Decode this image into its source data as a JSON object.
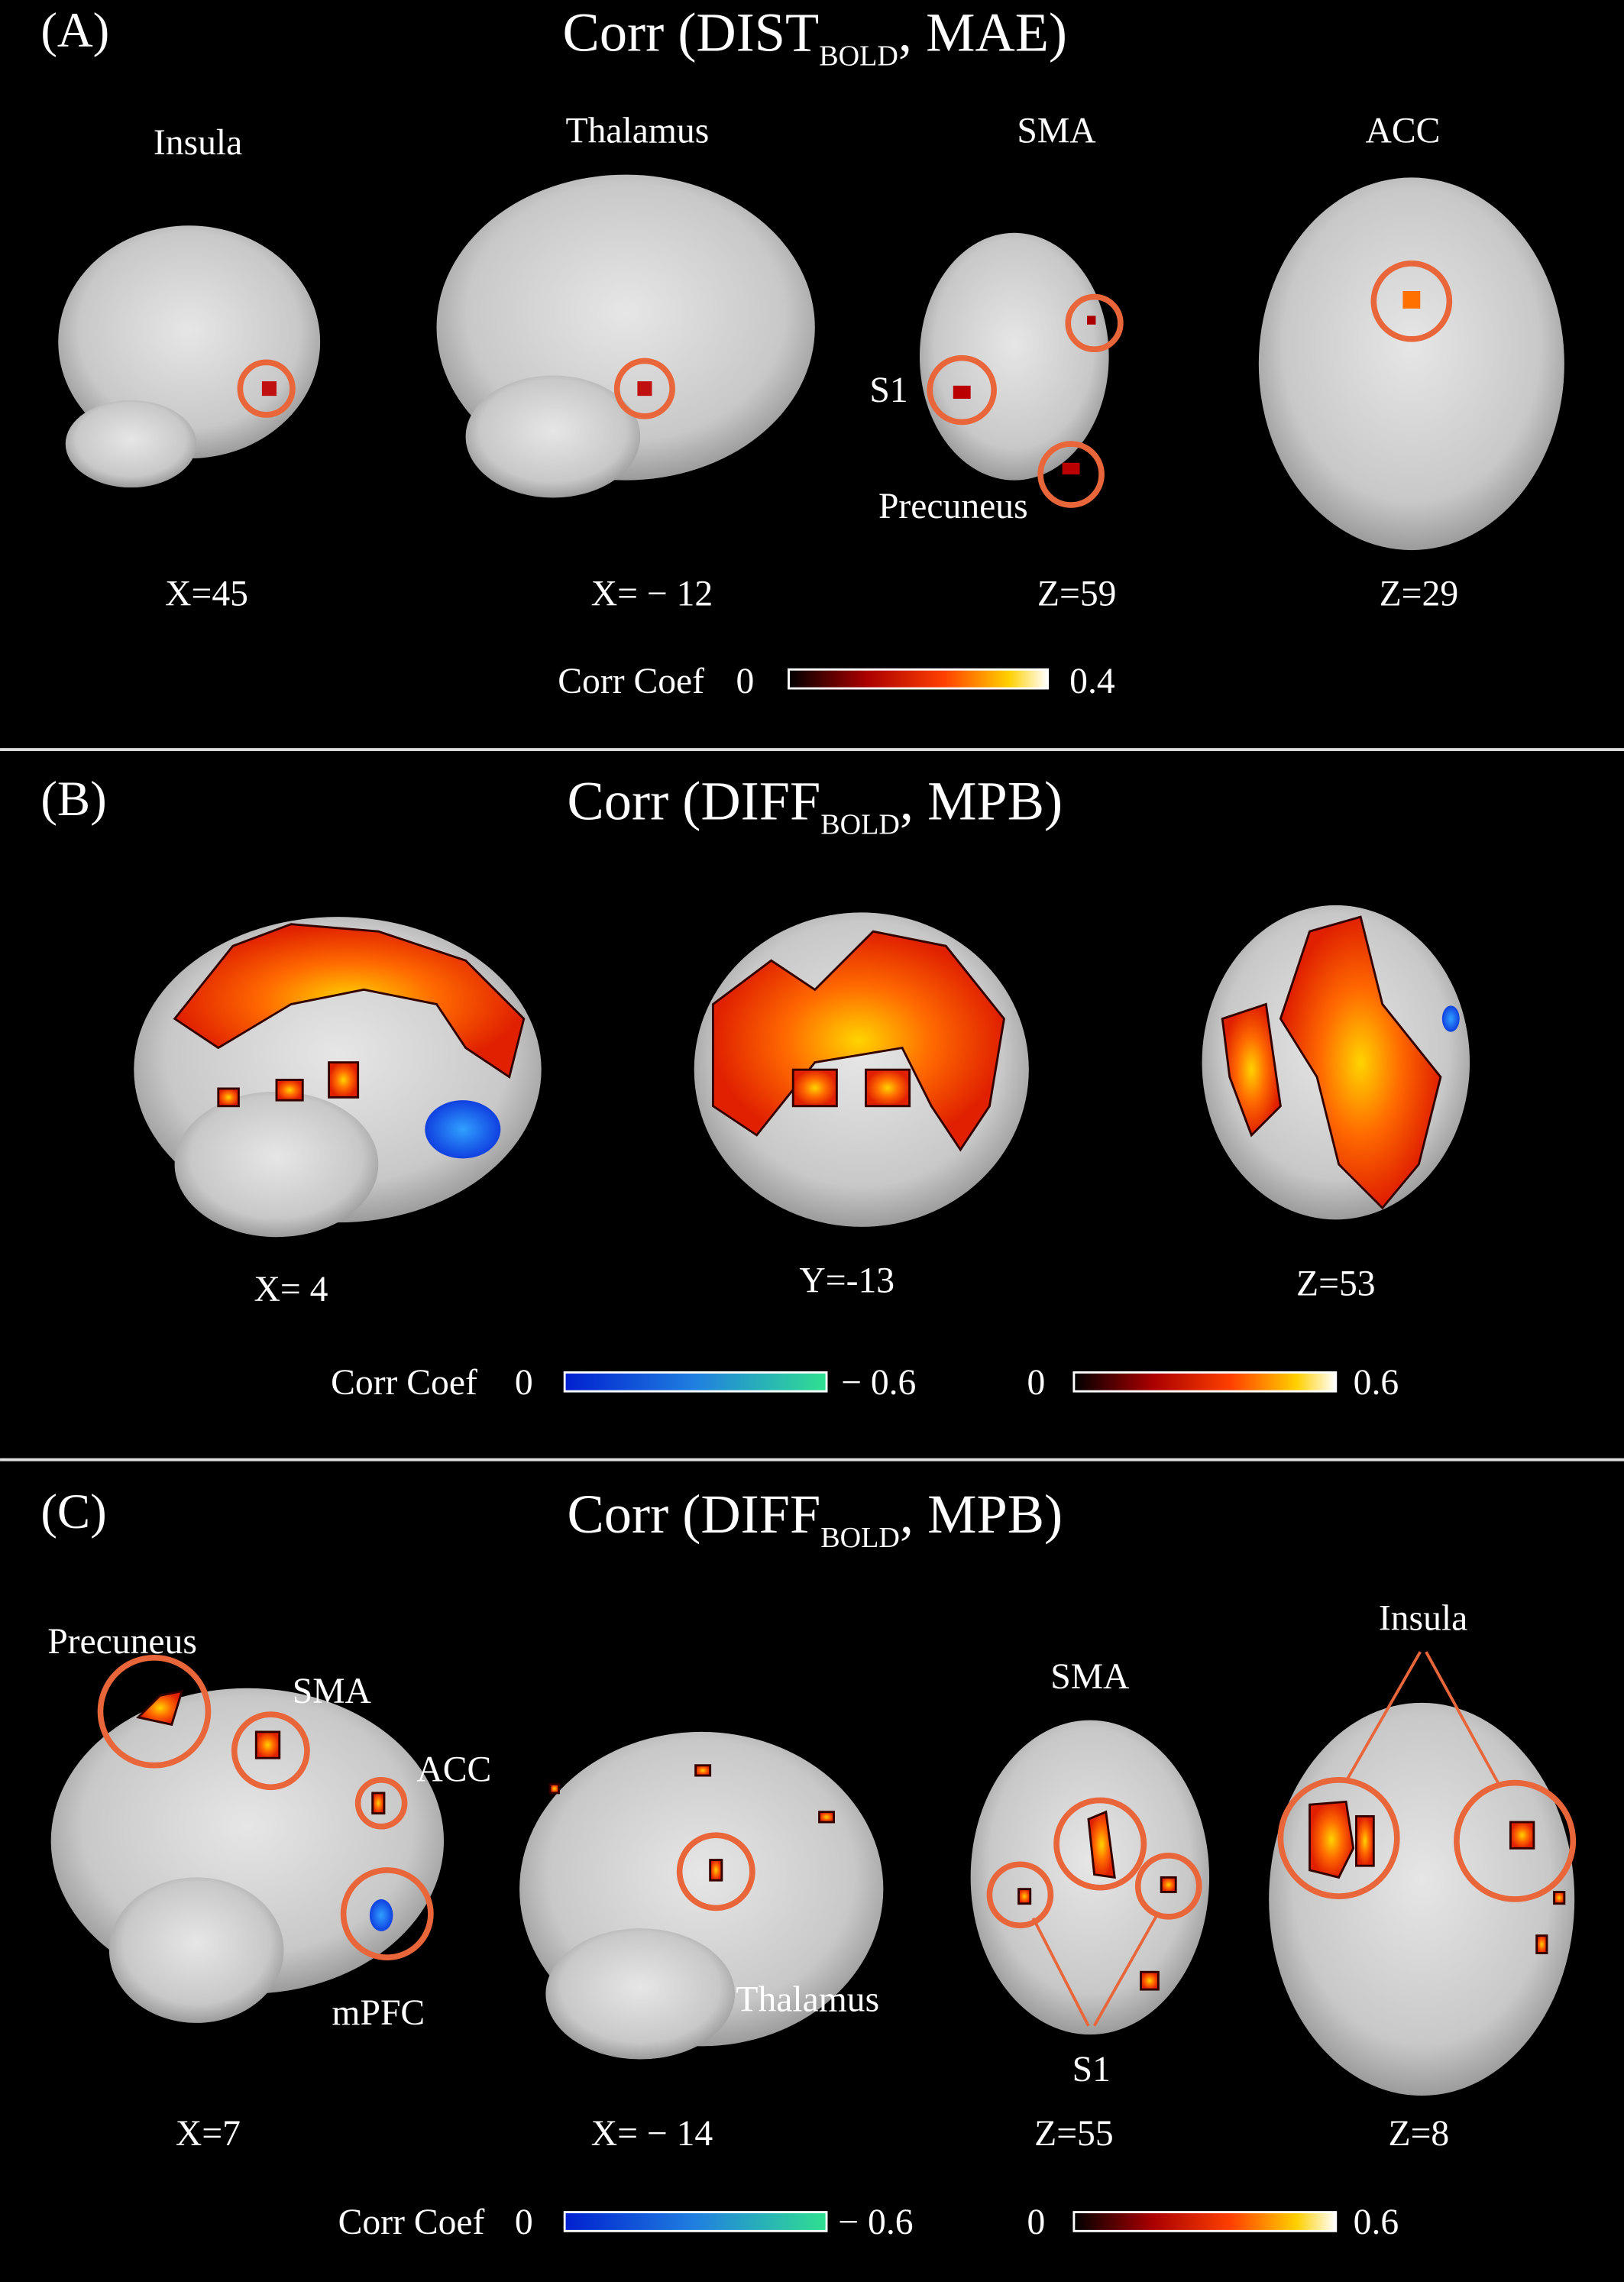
{
  "panels": [
    {
      "label": "(A)",
      "title": {
        "prefix": "Corr (DIST",
        "subscript": "BOLD",
        "suffix": ", MAE)"
      },
      "regions": [
        "Insula",
        "Thalamus",
        "SMA",
        "ACC"
      ],
      "annotations": [
        "S1",
        "Precuneus"
      ],
      "coordinates": [
        "X=45",
        "X= − 12",
        "Z=59",
        "Z=29"
      ],
      "colorbar": {
        "title": "Corr Coef",
        "positive": {
          "min": "0",
          "max": "0.4"
        }
      }
    },
    {
      "label": "(B)",
      "title": {
        "prefix": "Corr (DIFF",
        "subscript": "BOLD",
        "suffix": ", MPB)"
      },
      "coordinates": [
        "X= 4",
        "Y=-13",
        "Z=53"
      ],
      "colorbar": {
        "title": "Corr Coef",
        "negative": {
          "min": "0",
          "max": "− 0.6"
        },
        "positive": {
          "min": "0",
          "max": "0.6"
        }
      }
    },
    {
      "label": "(C)",
      "title": {
        "prefix": "Corr (DIFF",
        "subscript": "BOLD",
        "suffix": ", MPB)"
      },
      "annotations": [
        "Precuneus",
        "SMA",
        "ACC",
        "mPFC",
        "Thalamus",
        "SMA",
        "S1",
        "Insula"
      ],
      "coordinates": [
        "X=7",
        "X= − 14",
        "Z=55",
        "Z=8"
      ],
      "colorbar": {
        "title": "Corr Coef",
        "negative": {
          "min": "0",
          "max": "− 0.6"
        },
        "positive": {
          "min": "0",
          "max": "0.6"
        }
      }
    }
  ]
}
